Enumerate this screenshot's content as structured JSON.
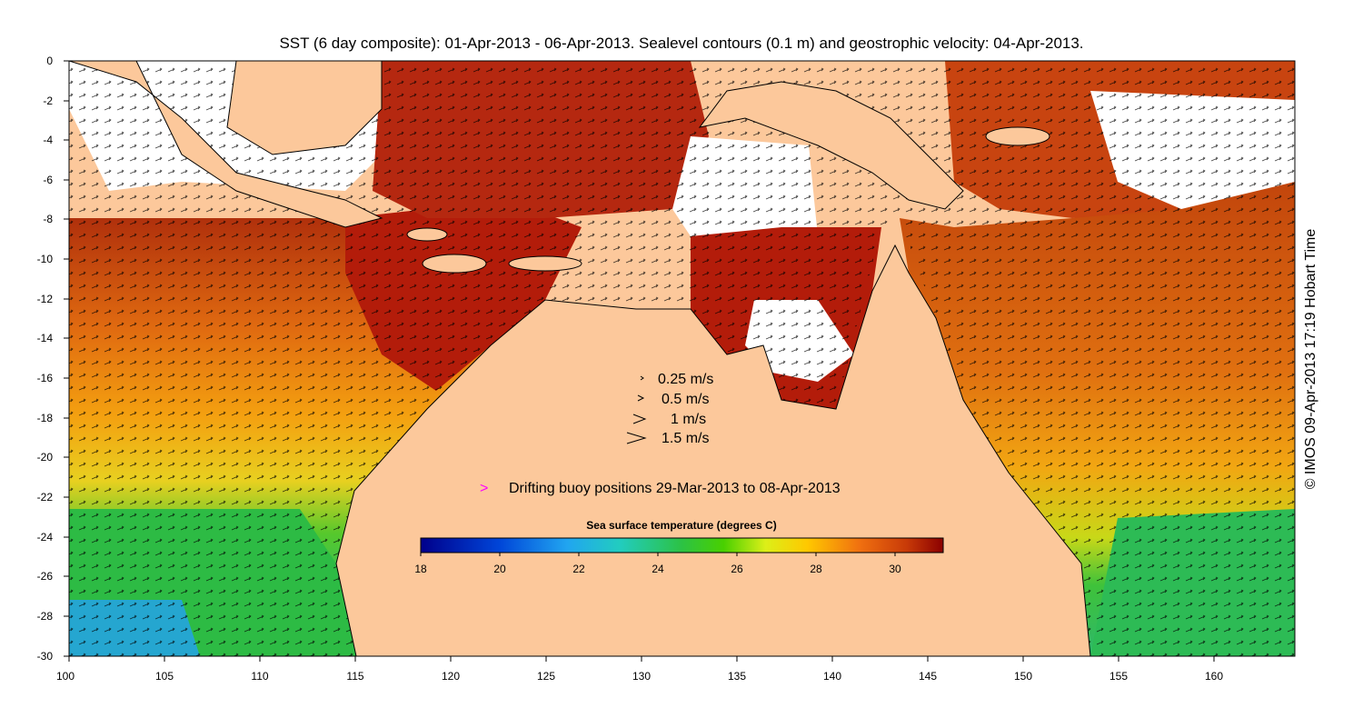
{
  "title": "SST (6 day composite): 01-Apr-2013 - 06-Apr-2013. Sealevel contours (0.1 m) and geostrophic velocity: 04-Apr-2013.",
  "copyright": "© IMOS 09-Apr-2013 17:19 Hobart Time",
  "y_ticks": [
    "0",
    "-2",
    "-4",
    "-6",
    "-8",
    "-10",
    "-12",
    "-14",
    "-16",
    "-18",
    "-20",
    "-22",
    "-24",
    "-26",
    "-28",
    "-30"
  ],
  "x_ticks": [
    "100",
    "105",
    "110",
    "115",
    "120",
    "125",
    "130",
    "135",
    "140",
    "145",
    "150",
    "155",
    "160"
  ],
  "velocity_legend": [
    {
      "label": "0.25 m/s",
      "speed": 0.25
    },
    {
      "label": "0.5 m/s",
      "speed": 0.5
    },
    {
      "label": "1 m/s",
      "speed": 1.0
    },
    {
      "label": "1.5 m/s",
      "speed": 1.5
    }
  ],
  "buoy_legend": {
    "symbol": ">",
    "label": "Drifting buoy positions 29-Mar-2013 to 08-Apr-2013",
    "color": "#ff00ff"
  },
  "colorbar": {
    "title": "Sea surface temperature (degrees C)",
    "ticks": [
      "18",
      "20",
      "22",
      "24",
      "26",
      "28",
      "30"
    ],
    "range": [
      18,
      31.3
    ]
  },
  "colors": {
    "land": "#fcc89b",
    "warm_sea": "#b31c0a",
    "cool_sea": "#2dbb2d"
  }
}
